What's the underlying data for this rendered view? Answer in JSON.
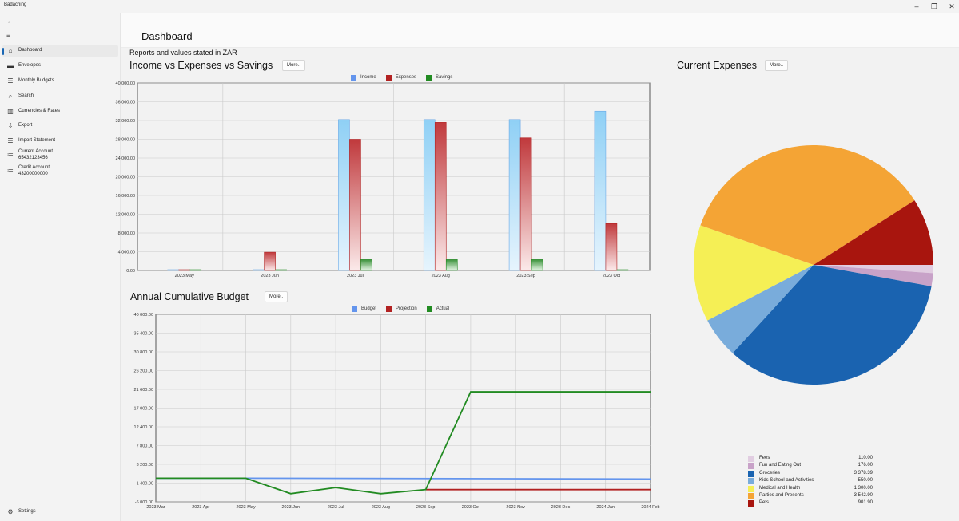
{
  "app": {
    "title": "Badaching"
  },
  "window_controls": {
    "minimize": "–",
    "maximize": "❐",
    "close": "✕"
  },
  "sidebar": {
    "back_glyph": "←",
    "menu_glyph": "≡",
    "items": [
      {
        "label": "Dashboard",
        "icon": "home-icon",
        "glyph": "⌂",
        "active": true
      },
      {
        "label": "Envelopes",
        "icon": "folder-icon",
        "glyph": "▬"
      },
      {
        "label": "Monthly Budgets",
        "icon": "list-icon",
        "glyph": "☰"
      },
      {
        "label": "Search",
        "icon": "search-icon",
        "glyph": "⌕"
      },
      {
        "label": "Currencies & Rates",
        "icon": "chart-icon",
        "glyph": "▥"
      },
      {
        "label": "Export",
        "icon": "export-icon",
        "glyph": "⇩"
      },
      {
        "label": "Import Statement",
        "icon": "import-icon",
        "glyph": "☰"
      },
      {
        "label": "Current Account",
        "sub": "65432123456",
        "icon": "account-icon",
        "glyph": "≔"
      },
      {
        "label": "Credit Account",
        "sub": "43200000000",
        "icon": "account-icon",
        "glyph": "≔"
      }
    ],
    "settings": {
      "label": "Settings",
      "glyph": "⚙"
    }
  },
  "main": {
    "title": "Dashboard",
    "subtitle": "Reports and values stated in ZAR",
    "more_label": "More.."
  },
  "chart_data": [
    {
      "type": "bar",
      "title": "Income vs Expenses vs Savings",
      "categories": [
        "2023 May",
        "2023 Jun",
        "2023 Jul",
        "2023 Aug",
        "2023 Sep",
        "2023 Oct"
      ],
      "series": [
        {
          "name": "Income",
          "color": "#6495ed",
          "values": [
            0,
            0,
            32200,
            32200,
            32200,
            34000
          ]
        },
        {
          "name": "Expenses",
          "color": "#b22222",
          "values": [
            0,
            3900,
            28000,
            31600,
            28300,
            10000
          ]
        },
        {
          "name": "Savings",
          "color": "#228b22",
          "values": [
            0,
            0,
            2500,
            2500,
            2500,
            0
          ]
        }
      ],
      "ylim": [
        0,
        40000
      ],
      "yticks": [
        "0.00",
        "4 000.00",
        "8 000.00",
        "12 000.00",
        "16 000.00",
        "20 000.00",
        "24 000.00",
        "28 000.00",
        "32 000.00",
        "36 000.00",
        "40 000.00"
      ],
      "legend": "top-center",
      "grid": true
    },
    {
      "type": "line",
      "title": "Annual Cumulative Budget",
      "x": [
        "2023 Mar",
        "2023 Apr",
        "2023 May",
        "2023 Jun",
        "2023 Jul",
        "2023 Aug",
        "2023 Sep",
        "2023 Oct",
        "2023 Nov",
        "2023 Dec",
        "2024 Jan",
        "2024 Feb"
      ],
      "series": [
        {
          "name": "Budget",
          "color": "#6495ed",
          "points": [
            [
              0,
              -200
            ],
            [
              2,
              -200
            ],
            [
              11,
              -400
            ]
          ]
        },
        {
          "name": "Projection",
          "color": "#b22222",
          "points": [
            [
              6,
              -3000
            ],
            [
              7,
              -3000
            ],
            [
              11,
              -3000
            ]
          ]
        },
        {
          "name": "Actual",
          "color": "#228b22",
          "points": [
            [
              0,
              -200
            ],
            [
              2,
              -200
            ],
            [
              3,
              -4000
            ],
            [
              4,
              -2500
            ],
            [
              5,
              -4000
            ],
            [
              6,
              -3000
            ],
            [
              7,
              21000
            ],
            [
              11,
              21000
            ]
          ]
        }
      ],
      "ylim": [
        -6000,
        40000
      ],
      "yticks": [
        "-6 000.00",
        "-1 400.00",
        "3 200.00",
        "7 800.00",
        "12 400.00",
        "17 000.00",
        "21 600.00",
        "26 200.00",
        "30 800.00",
        "35 400.00",
        "40 000.00"
      ],
      "legend": "top-center",
      "grid": true
    },
    {
      "type": "pie",
      "title": "Current Expenses",
      "slices": [
        {
          "name": "Fees",
          "value": 110.0,
          "display": "110.00",
          "color": "#e1cde1"
        },
        {
          "name": "Fun and Eating Out",
          "value": 176.0,
          "display": "176.00",
          "color": "#c8a2c8"
        },
        {
          "name": "Groceries",
          "value": 3378.39,
          "display": "3 378.39",
          "color": "#1a63b0"
        },
        {
          "name": "Kids School and Activities",
          "value": 550.0,
          "display": "550.00",
          "color": "#79acdb"
        },
        {
          "name": "Medical and Health",
          "value": 1300.0,
          "display": "1 300.00",
          "color": "#f5ef55"
        },
        {
          "name": "Parties and Presents",
          "value": 3542.9,
          "display": "3 542.90",
          "color": "#f4a435"
        },
        {
          "name": "Pets",
          "value": 901.9,
          "display": "901.90",
          "color": "#a8150e"
        }
      ],
      "legend": "bottom"
    }
  ]
}
